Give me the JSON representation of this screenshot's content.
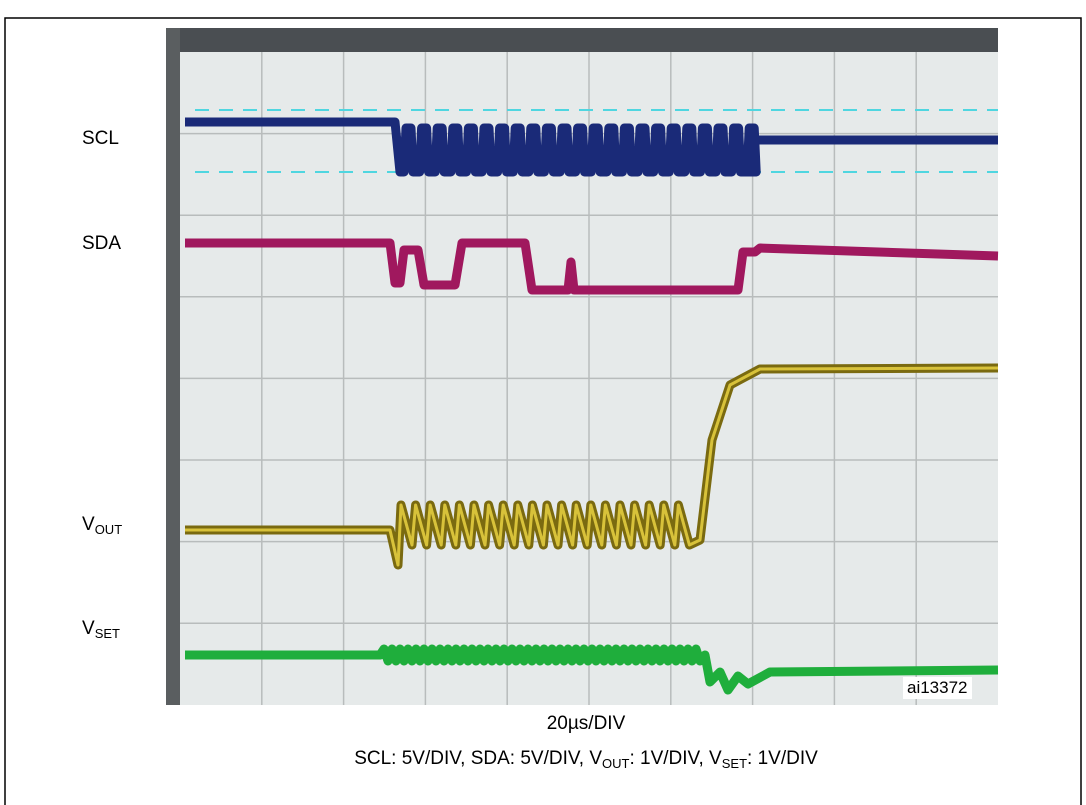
{
  "figure": {
    "signals": [
      {
        "text": "SCL"
      },
      {
        "text": "SDA"
      },
      {
        "text": "V",
        "sub": "OUT"
      },
      {
        "text": "V",
        "sub": "SET"
      }
    ],
    "image_id": "ai13372",
    "caption": {
      "line1": "20µs/DIV",
      "line2": [
        {
          "text": "SCL: 5V/DIV, SDA: 5V/DIV, V"
        },
        {
          "sub": "OUT"
        },
        {
          "text": ": 1V/DIV, V"
        },
        {
          "sub": "SET"
        },
        {
          "text": ": 1V/DIV"
        }
      ]
    }
  }
}
